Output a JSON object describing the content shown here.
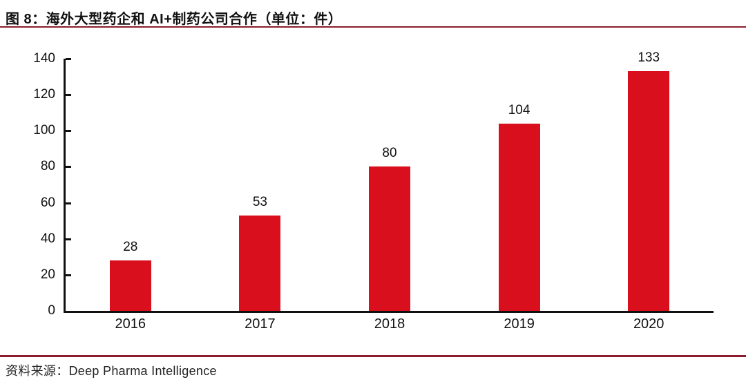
{
  "header": {
    "title": "图 8：海外大型药企和 AI+制药公司合作（单位：件）"
  },
  "footer": {
    "source": "资料来源：Deep Pharma Intelligence"
  },
  "chart_data": {
    "type": "bar",
    "title": "图 8：海外大型药企和 AI+制药公司合作（单位：件）",
    "categories": [
      "2016",
      "2017",
      "2018",
      "2019",
      "2020"
    ],
    "values": [
      28,
      53,
      80,
      104,
      133
    ],
    "xlabel": "",
    "ylabel": "",
    "ylim": [
      0,
      140
    ],
    "ytick_step": 20,
    "yticks": [
      0,
      20,
      40,
      60,
      80,
      100,
      120,
      140
    ],
    "grid": false,
    "legend": false,
    "data_labels": true,
    "bar_color": "#d90f1e",
    "axis_color": "#111111",
    "rule_color": "#8b1d2e"
  }
}
